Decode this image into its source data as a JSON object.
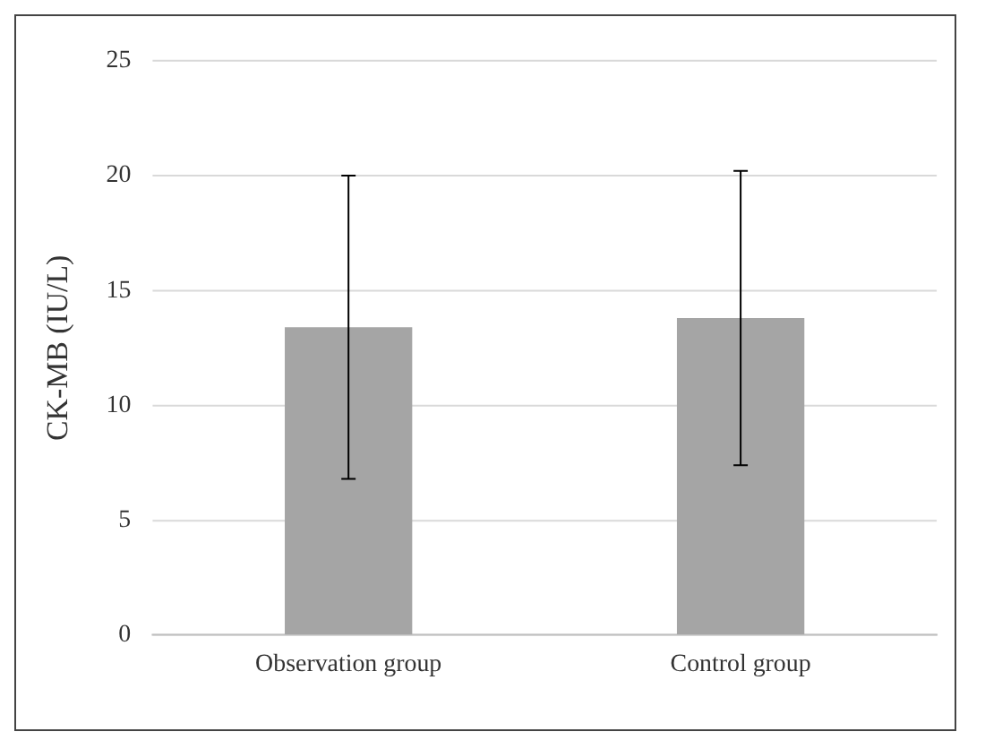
{
  "chart_data": {
    "type": "bar",
    "ylabel": "CK-MB (IU/L)",
    "categories": [
      "Observation group",
      "Control group"
    ],
    "values": [
      13.4,
      13.8
    ],
    "errors": [
      6.6,
      6.4
    ],
    "color": "#a5a5a5",
    "ylim": [
      0,
      25
    ],
    "yticks": [
      0,
      5,
      10,
      15,
      20,
      25
    ],
    "grid": "y",
    "legend": false
  }
}
